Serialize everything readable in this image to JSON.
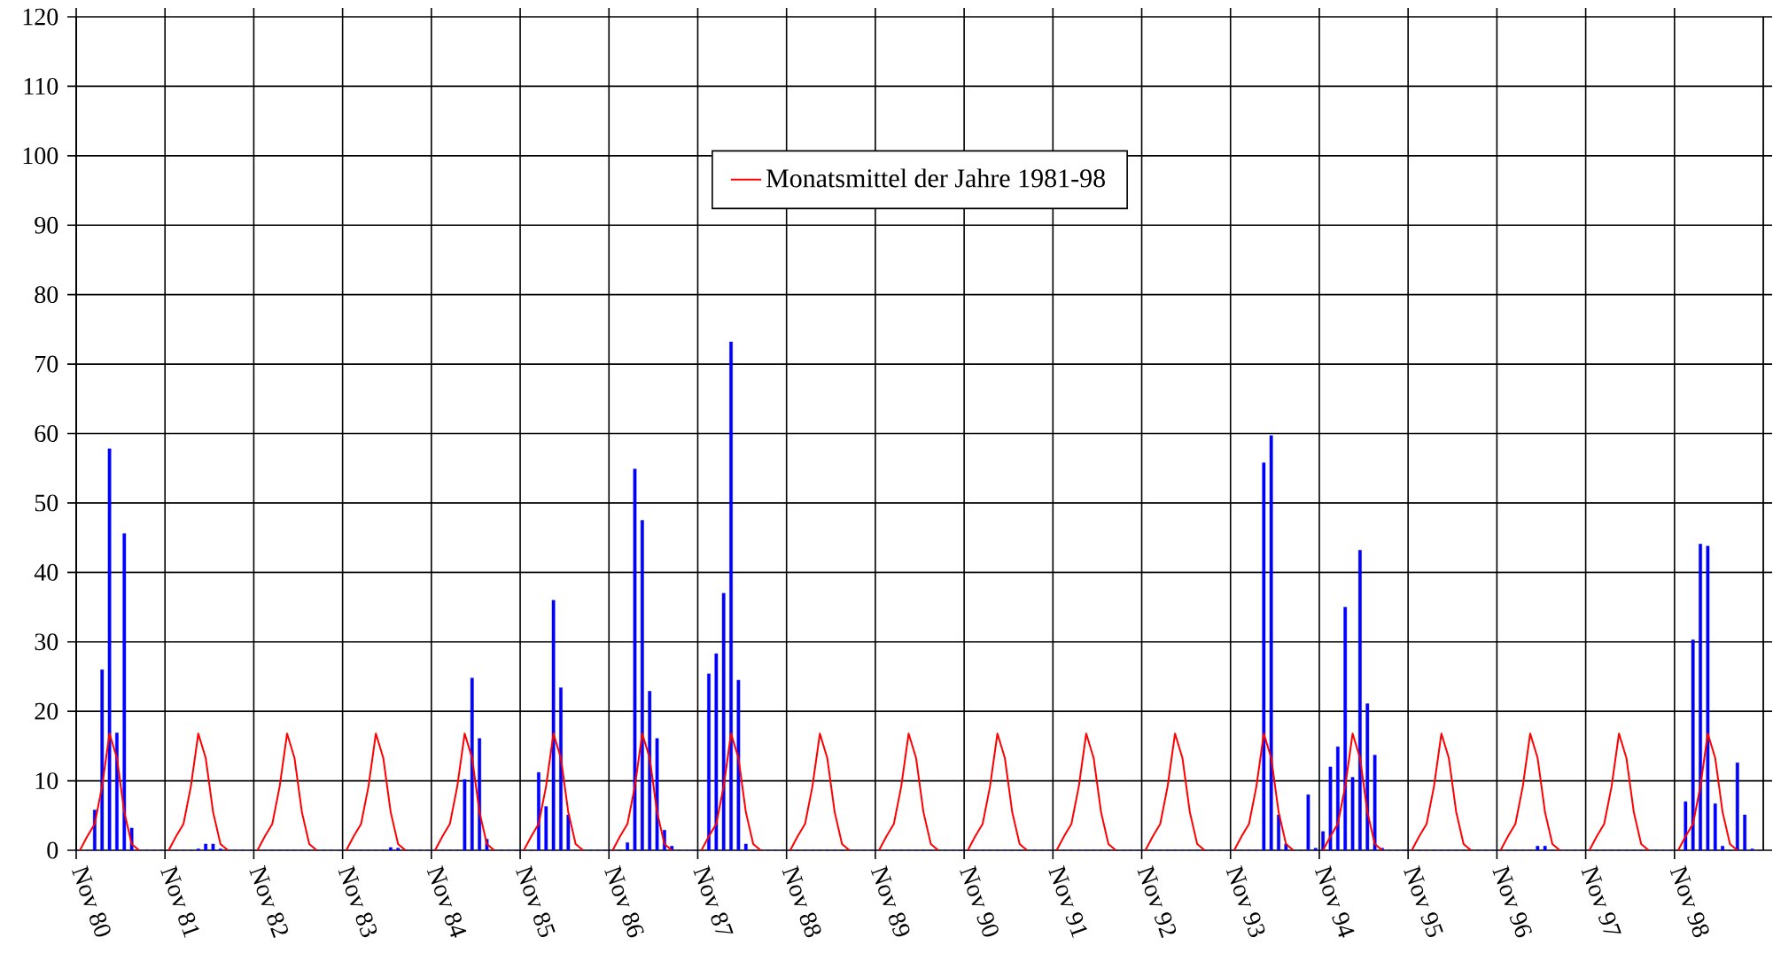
{
  "chart_data": {
    "type": "bar",
    "categories": [
      "Nov 80",
      null,
      null,
      null,
      null,
      null,
      null,
      null,
      null,
      null,
      null,
      null,
      "Nov 81",
      null,
      null,
      null,
      null,
      null,
      null,
      null,
      null,
      null,
      null,
      null,
      "Nov 82",
      null,
      null,
      null,
      null,
      null,
      null,
      null,
      null,
      null,
      null,
      null,
      "Nov 83",
      null,
      null,
      null,
      null,
      null,
      null,
      null,
      null,
      null,
      null,
      null,
      "Nov 84",
      null,
      null,
      null,
      null,
      null,
      null,
      null,
      null,
      null,
      null,
      null,
      "Nov 85",
      null,
      null,
      null,
      null,
      null,
      null,
      null,
      null,
      null,
      null,
      null,
      "Nov 86",
      null,
      null,
      null,
      null,
      null,
      null,
      null,
      null,
      null,
      null,
      null,
      "Nov 87",
      null,
      null,
      null,
      null,
      null,
      null,
      null,
      null,
      null,
      null,
      null,
      "Nov 88",
      null,
      null,
      null,
      null,
      null,
      null,
      null,
      null,
      null,
      null,
      null,
      "Nov 89",
      null,
      null,
      null,
      null,
      null,
      null,
      null,
      null,
      null,
      null,
      null,
      "Nov 90",
      null,
      null,
      null,
      null,
      null,
      null,
      null,
      null,
      null,
      null,
      null,
      "Nov 91",
      null,
      null,
      null,
      null,
      null,
      null,
      null,
      null,
      null,
      null,
      null,
      "Nov 92",
      null,
      null,
      null,
      null,
      null,
      null,
      null,
      null,
      null,
      null,
      null,
      "Nov 93",
      null,
      null,
      null,
      null,
      null,
      null,
      null,
      null,
      null,
      null,
      null,
      "Nov 94",
      null,
      null,
      null,
      null,
      null,
      null,
      null,
      null,
      null,
      null,
      null,
      "Nov 95",
      null,
      null,
      null,
      null,
      null,
      null,
      null,
      null,
      null,
      null,
      null,
      "Nov 96",
      null,
      null,
      null,
      null,
      null,
      null,
      null,
      null,
      null,
      null,
      null,
      "Nov 97",
      null,
      null,
      null,
      null,
      null,
      null,
      null,
      null,
      null,
      null,
      null,
      "Nov 98",
      null,
      null,
      null,
      null,
      null,
      null,
      null,
      null,
      null,
      null,
      null
    ],
    "series": [
      {
        "color": "#0000ff",
        "values": [
          0,
          0,
          5.8,
          26,
          57.8,
          16.9,
          45.6,
          3.2,
          0,
          0,
          0,
          0,
          0,
          0,
          0,
          0,
          0.2,
          0.9,
          0.9,
          0.2,
          0,
          0,
          0,
          0,
          0,
          0,
          0,
          0,
          0,
          0,
          0,
          0,
          0,
          0,
          0,
          0,
          0,
          0,
          0,
          0,
          0,
          0,
          0.4,
          0.3,
          0,
          0,
          0,
          0,
          0,
          0,
          0,
          0,
          10.2,
          24.8,
          16.1,
          1.6,
          0,
          0,
          0,
          0,
          0,
          0,
          11.2,
          6.3,
          36,
          23.4,
          5.1,
          0,
          0,
          0,
          0,
          0,
          0,
          0,
          1.1,
          54.9,
          47.5,
          22.9,
          16.1,
          2.9,
          0.6,
          0,
          0,
          0,
          0,
          25.4,
          28.3,
          37,
          73.2,
          24.5,
          0.9,
          0,
          0,
          0,
          0,
          0,
          0,
          0,
          0,
          0,
          0,
          0,
          0,
          0,
          0,
          0,
          0,
          0,
          0,
          0,
          0,
          0,
          0,
          0,
          0,
          0,
          0,
          0,
          0,
          0,
          0,
          0,
          0,
          0,
          0,
          0,
          0,
          0,
          0,
          0,
          0,
          0,
          0,
          0,
          0,
          0,
          0,
          0,
          0,
          0,
          0,
          0,
          0,
          0,
          0,
          0,
          0,
          0,
          0,
          0,
          0,
          0,
          0,
          0,
          0,
          0,
          0,
          0,
          0,
          0,
          55.8,
          59.7,
          5.1,
          0.9,
          0,
          0,
          8,
          0.3,
          2.7,
          12,
          14.9,
          35,
          10.5,
          43.2,
          21.1,
          13.7,
          0.3,
          0,
          0,
          0,
          0,
          0,
          0,
          0,
          0,
          0,
          0,
          0,
          0,
          0,
          0,
          0,
          0,
          0,
          0,
          0,
          0,
          0.6,
          0.6,
          0,
          0,
          0,
          0,
          0,
          0,
          0,
          0,
          0,
          0,
          0,
          0,
          0,
          0,
          0,
          0,
          0,
          0,
          7,
          30.3,
          44.1,
          43.8,
          6.7,
          0.6,
          0,
          12.6,
          5.1,
          0.2,
          0
        ]
      },
      {
        "type": "line",
        "name": "Monatsmittel der Jahre 1981-98",
        "color": "#ff0000",
        "values": [
          0,
          2,
          3.8,
          9.2,
          16.8,
          13.3,
          5.5,
          0.9,
          0,
          null,
          null,
          null,
          0,
          2,
          3.8,
          9.2,
          16.8,
          13.3,
          5.5,
          0.9,
          0,
          null,
          null,
          null,
          0,
          2,
          3.8,
          9.2,
          16.8,
          13.3,
          5.5,
          0.9,
          0,
          null,
          null,
          null,
          0,
          2,
          3.8,
          9.2,
          16.8,
          13.3,
          5.5,
          0.9,
          0,
          null,
          null,
          null,
          0,
          2,
          3.8,
          9.2,
          16.8,
          13.3,
          5.5,
          0.9,
          0,
          null,
          null,
          null,
          0,
          2,
          3.8,
          9.2,
          16.8,
          13.3,
          5.5,
          0.9,
          0,
          null,
          null,
          null,
          0,
          2,
          3.8,
          9.2,
          16.8,
          13.3,
          5.5,
          0.9,
          0,
          null,
          null,
          null,
          0,
          2,
          3.8,
          9.2,
          16.8,
          13.3,
          5.5,
          0.9,
          0,
          null,
          null,
          null,
          0,
          2,
          3.8,
          9.2,
          16.8,
          13.3,
          5.5,
          0.9,
          0,
          null,
          null,
          null,
          0,
          2,
          3.8,
          9.2,
          16.8,
          13.3,
          5.5,
          0.9,
          0,
          null,
          null,
          null,
          0,
          2,
          3.8,
          9.2,
          16.8,
          13.3,
          5.5,
          0.9,
          0,
          null,
          null,
          null,
          0,
          2,
          3.8,
          9.2,
          16.8,
          13.3,
          5.5,
          0.9,
          0,
          null,
          null,
          null,
          0,
          2,
          3.8,
          9.2,
          16.8,
          13.3,
          5.5,
          0.9,
          0,
          null,
          null,
          null,
          0,
          2,
          3.8,
          9.2,
          16.8,
          13.3,
          5.5,
          0.9,
          0,
          null,
          null,
          null,
          0,
          2,
          3.8,
          9.2,
          16.8,
          13.3,
          5.5,
          0.9,
          0,
          null,
          null,
          null,
          0,
          2,
          3.8,
          9.2,
          16.8,
          13.3,
          5.5,
          0.9,
          0,
          null,
          null,
          null,
          0,
          2,
          3.8,
          9.2,
          16.8,
          13.3,
          5.5,
          0.9,
          0,
          null,
          null,
          null,
          0,
          2,
          3.8,
          9.2,
          16.8,
          13.3,
          5.5,
          0.9,
          0,
          null,
          null,
          null,
          0,
          2,
          3.8,
          9.2,
          16.8,
          13.3,
          5.5,
          0.9,
          0,
          null,
          null,
          null
        ]
      }
    ],
    "ylim": [
      0,
      120
    ],
    "yticks": [
      0,
      10,
      20,
      30,
      40,
      50,
      60,
      70,
      80,
      90,
      100,
      110,
      120
    ],
    "grid": true,
    "legend": "top"
  }
}
